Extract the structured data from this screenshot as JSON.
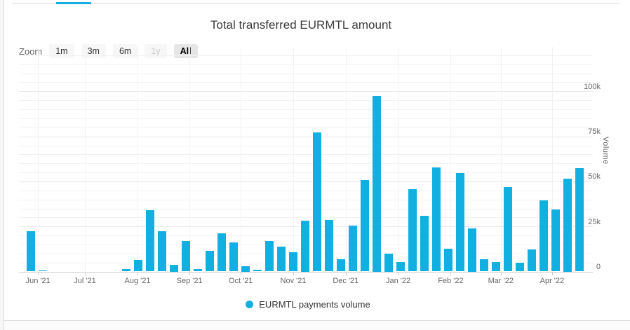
{
  "page": {
    "background": "#ffffff",
    "accent_color": "#11b0e1"
  },
  "header": {
    "title": "Total transferred EURMTL amount"
  },
  "toolbar": {
    "zoom_label": "Zoom",
    "buttons": [
      {
        "label": "1m",
        "state": "normal"
      },
      {
        "label": "3m",
        "state": "normal"
      },
      {
        "label": "6m",
        "state": "normal"
      },
      {
        "label": "1y",
        "state": "disabled"
      },
      {
        "label": "All",
        "state": "selected"
      }
    ]
  },
  "legend": {
    "label": "EURMTL payments volume",
    "marker_color": "#11b0e1"
  },
  "chart_data": {
    "type": "bar",
    "title": "Total transferred EURMTL amount",
    "xlabel": "",
    "ylabel": "Volume",
    "ylim": [
      0,
      125000
    ],
    "y_axis_side": "right",
    "y_tick_interval": 25000,
    "y_minor_tick_interval": 5000,
    "y_ticks": [
      {
        "value": 0,
        "label": "0"
      },
      {
        "value": 25000,
        "label": "25k"
      },
      {
        "value": 50000,
        "label": "50k"
      },
      {
        "value": 75000,
        "label": "75k"
      },
      {
        "value": 100000,
        "label": "100k"
      }
    ],
    "grid": "minor-horizontal-and-month-vertical",
    "legend_position": "bottom",
    "x_unit": "week",
    "series": [
      {
        "name": "EURMTL payments volume",
        "color": "#11b0e1",
        "values": [
          22500,
          700,
          0,
          0,
          0,
          0,
          0,
          0,
          1200,
          6300,
          34000,
          22300,
          3700,
          17000,
          1500,
          11600,
          21300,
          16300,
          3100,
          900,
          16800,
          13700,
          10600,
          28400,
          77200,
          28700,
          6900,
          25600,
          50700,
          97400,
          9900,
          5300,
          45600,
          31000,
          57800,
          12800,
          54800,
          24100,
          6900,
          5300,
          47000,
          4700,
          12100,
          39300,
          34500,
          51700,
          57400
        ]
      }
    ],
    "month_ticks": [
      {
        "label": "Jun '21",
        "week_pos": 0.6
      },
      {
        "label": "Jul '21",
        "week_pos": 4.53
      },
      {
        "label": "Aug '21",
        "week_pos": 8.94
      },
      {
        "label": "Sep '21",
        "week_pos": 13.3
      },
      {
        "label": "Oct '21",
        "week_pos": 17.6
      },
      {
        "label": "Nov '21",
        "week_pos": 22.0
      },
      {
        "label": "Dec '21",
        "week_pos": 26.4
      },
      {
        "label": "Jan '22",
        "week_pos": 30.8
      },
      {
        "label": "Feb '22",
        "week_pos": 35.2
      },
      {
        "label": "Mar '22",
        "week_pos": 39.4
      },
      {
        "label": "Apr '22",
        "week_pos": 43.7
      }
    ]
  }
}
